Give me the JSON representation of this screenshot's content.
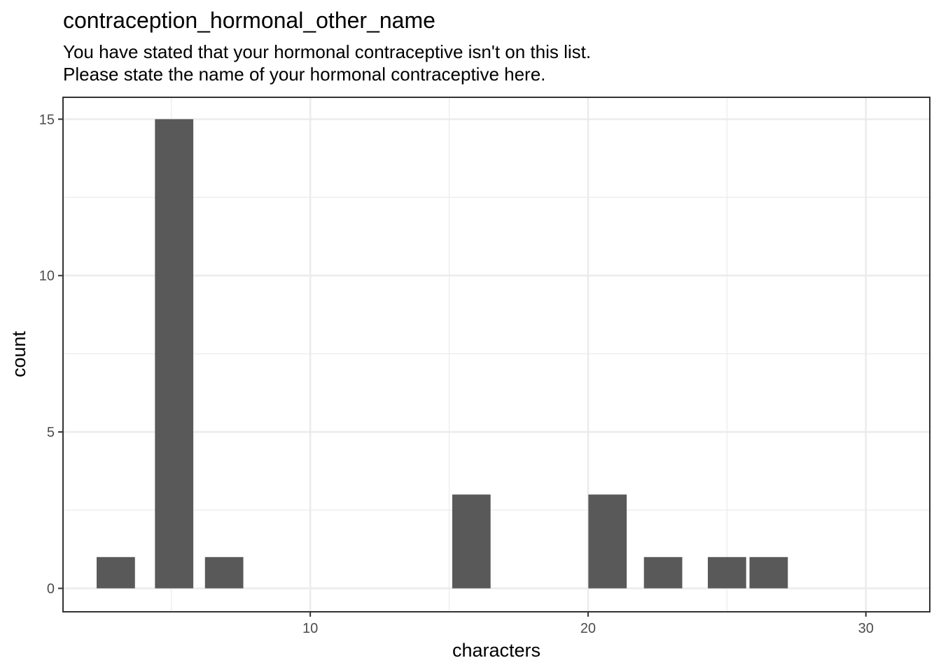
{
  "chart_data": {
    "type": "bar",
    "title": "contraception_hormonal_other_name",
    "subtitle": [
      "You have stated that your hormonal contraceptive isn't on this list.",
      "Please state the name of your hormonal contraceptive here."
    ],
    "xlabel": "characters",
    "ylabel": "count",
    "xlim": [
      1.1,
      32.3
    ],
    "ylim": [
      -0.75,
      15.7
    ],
    "x_ticks": [
      10,
      20,
      30
    ],
    "y_ticks": [
      0,
      5,
      10,
      15
    ],
    "x_minor": [
      5,
      15,
      25
    ],
    "y_minor": [
      2.5,
      7.5,
      12.5
    ],
    "bar_width": 1.38,
    "x": [
      3.0,
      5.1,
      6.9,
      15.8,
      20.7,
      22.7,
      25.0,
      26.5
    ],
    "values": [
      1,
      15,
      1,
      3,
      3,
      1,
      1,
      1
    ],
    "bar_color": "#595959",
    "grid": true,
    "panel_border_color": "#333333"
  }
}
